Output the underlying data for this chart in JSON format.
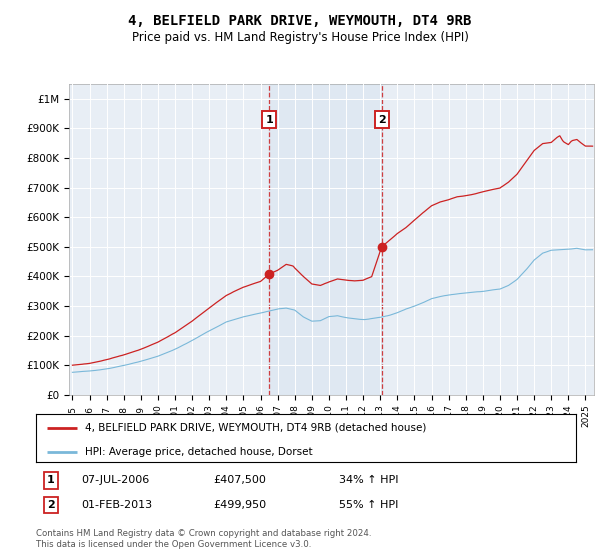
{
  "title": "4, BELFIELD PARK DRIVE, WEYMOUTH, DT4 9RB",
  "subtitle": "Price paid vs. HM Land Registry's House Price Index (HPI)",
  "ylabel_ticks": [
    "£0",
    "£100K",
    "£200K",
    "£300K",
    "£400K",
    "£500K",
    "£600K",
    "£700K",
    "£800K",
    "£900K",
    "£1M"
  ],
  "ytick_values": [
    0,
    100000,
    200000,
    300000,
    400000,
    500000,
    600000,
    700000,
    800000,
    900000,
    1000000
  ],
  "ylim": [
    0,
    1050000
  ],
  "xlim_start": 1994.8,
  "xlim_end": 2025.5,
  "sale1_date": 2006.52,
  "sale1_price": 407500,
  "sale1_label": "1",
  "sale1_text": "07-JUL-2006",
  "sale1_amount": "£407,500",
  "sale1_hpi": "34% ↑ HPI",
  "sale2_date": 2013.08,
  "sale2_price": 499950,
  "sale2_label": "2",
  "sale2_text": "01-FEB-2013",
  "sale2_amount": "£499,950",
  "sale2_hpi": "55% ↑ HPI",
  "hpi_color": "#7ab8d9",
  "sale_color": "#cc2222",
  "background_color": "#ffffff",
  "plot_bg_color": "#e8eef5",
  "grid_color": "#ffffff",
  "legend_label_sale": "4, BELFIELD PARK DRIVE, WEYMOUTH, DT4 9RB (detached house)",
  "legend_label_hpi": "HPI: Average price, detached house, Dorset",
  "footer": "Contains HM Land Registry data © Crown copyright and database right 2024.\nThis data is licensed under the Open Government Licence v3.0."
}
